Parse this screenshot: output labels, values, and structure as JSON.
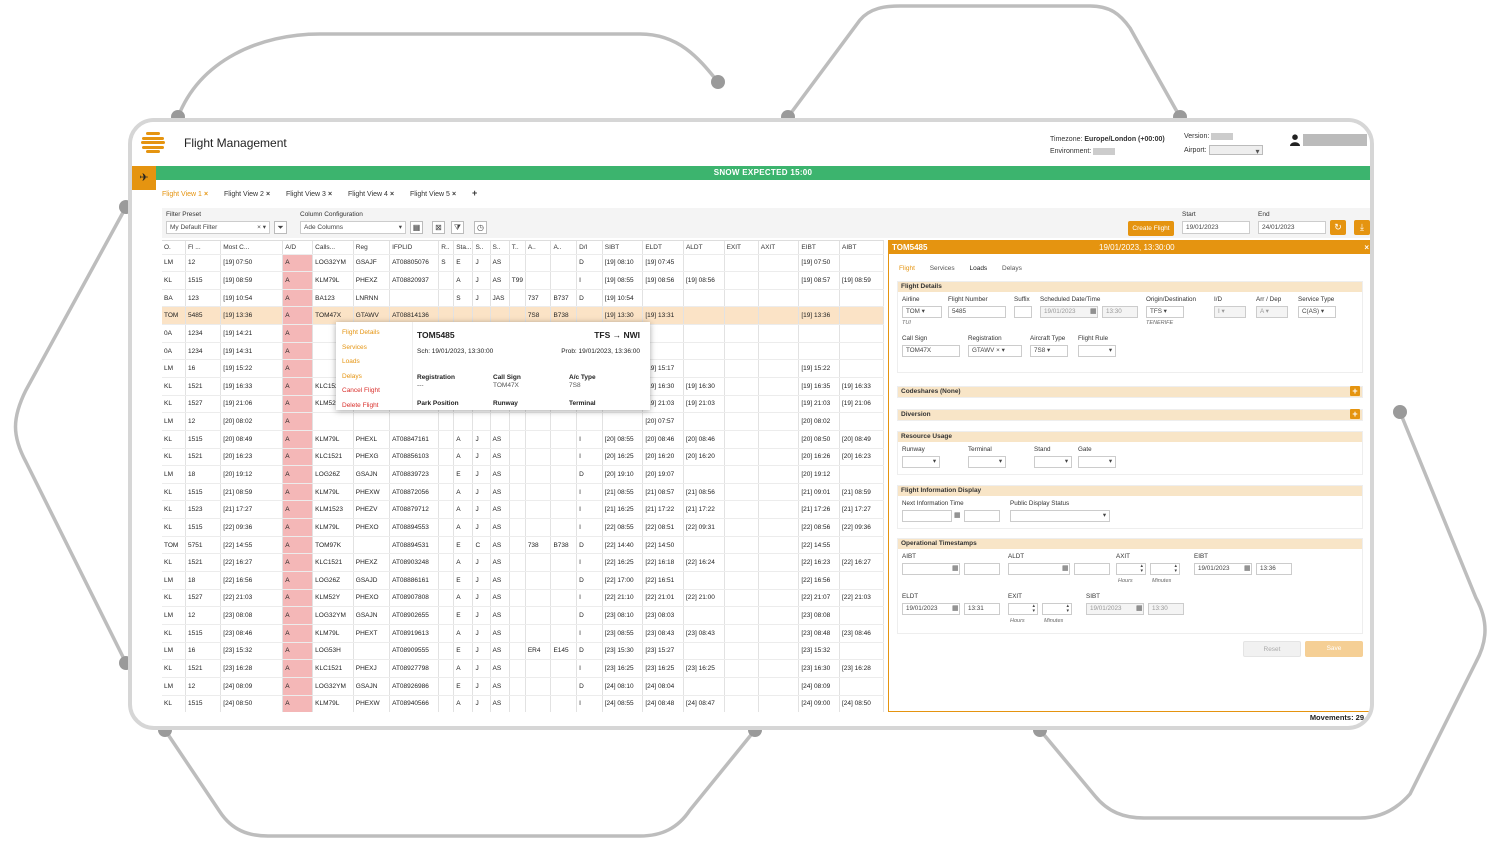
{
  "app": {
    "title": "Flight Management"
  },
  "header": {
    "timezone_label": "Timezone:",
    "timezone_value": "Europe/London (+00:00)",
    "environment_label": "Environment:",
    "version_label": "Version:",
    "airport_label": "Airport:"
  },
  "banner": {
    "text": "SNOW EXPECTED 15:00"
  },
  "tabs": [
    {
      "label": "Flight View 1"
    },
    {
      "label": "Flight View 2"
    },
    {
      "label": "Flight View 3"
    },
    {
      "label": "Flight View 4"
    },
    {
      "label": "Flight View 5"
    }
  ],
  "add_tab": "+",
  "toolbar": {
    "filter_label": "Filter Preset",
    "filter_value": "My Default Filter",
    "column_label": "Column Configuration",
    "column_value": "Ade Columns",
    "create_flight": "Create Flight",
    "start_label": "Start",
    "start_value": "19/01/2023",
    "end_label": "End",
    "end_value": "24/01/2023"
  },
  "grid": {
    "columns": [
      "O.",
      "Fl ...",
      "Most C...",
      "A/D",
      "Calls...",
      "Reg",
      "IFPLID",
      "R..",
      "Sta...",
      "S..",
      "S..",
      "T..",
      "A..",
      "A..",
      "D/I",
      "SIBT",
      "ELDT",
      "ALDT",
      "EXIT",
      "AXIT",
      "EIBT",
      "AIBT"
    ],
    "rows": [
      [
        "LM",
        "12",
        "[19] 07:50",
        "A",
        "LOG32YM",
        "GSAJF",
        "AT08805076",
        "S",
        "E",
        "J",
        "AS",
        "",
        "",
        "",
        "D",
        "[19] 08:10",
        "[19] 07:45",
        "",
        "",
        "",
        "[19] 07:50",
        ""
      ],
      [
        "KL",
        "1515",
        "[19] 08:59",
        "A",
        "KLM79L",
        "PHEXZ",
        "AT08820937",
        "",
        "A",
        "J",
        "AS",
        "T99",
        "",
        "",
        "I",
        "[19] 08:55",
        "[19] 08:56",
        "[19] 08:56",
        "",
        "",
        "[19] 08:57",
        "[19] 08:59"
      ],
      [
        "BA",
        "123",
        "[19] 10:54",
        "A",
        "BA123",
        "LNRNN",
        "",
        "",
        "S",
        "J",
        "JAS",
        "",
        "737",
        "B737",
        "D",
        "[19] 10:54",
        "",
        "",
        "",
        "",
        "",
        ""
      ],
      [
        "TOM",
        "5485",
        "[19] 13:36",
        "A",
        "TOM47X",
        "GTAWV",
        "AT08814136",
        "",
        "",
        "",
        "",
        "",
        "7S8",
        "B738",
        "",
        "[19] 13:30",
        "[19] 13:31",
        "",
        "",
        "",
        "[19] 13:36",
        ""
      ],
      [
        "0A",
        "1234",
        "[19] 14:21",
        "A",
        "",
        "",
        "",
        "",
        "",
        "",
        "",
        "",
        "",
        "",
        "",
        "",
        "",
        "",
        "",
        "",
        "",
        ""
      ],
      [
        "0A",
        "1234",
        "[19] 14:31",
        "A",
        "",
        "",
        "",
        "",
        "",
        "",
        "",
        "",
        "",
        "",
        "",
        "",
        "",
        "",
        "",
        "",
        "",
        ""
      ],
      [
        "LM",
        "16",
        "[19] 15:22",
        "A",
        "",
        "",
        "",
        "",
        "",
        "",
        "",
        "",
        "",
        "",
        "",
        "",
        "[19] 15:17",
        "",
        "",
        "",
        "[19] 15:22",
        ""
      ],
      [
        "KL",
        "1521",
        "[19] 16:33",
        "A",
        "KLC1521",
        "",
        "",
        "",
        "",
        "",
        "",
        "",
        "",
        "",
        "",
        "",
        "[19] 16:30",
        "[19] 16:30",
        "",
        "",
        "[19] 16:35",
        "[19] 16:33"
      ],
      [
        "KL",
        "1527",
        "[19] 21:06",
        "A",
        "KLM52Y",
        "",
        "",
        "",
        "",
        "",
        "",
        "",
        "",
        "",
        "",
        "",
        "[19] 21:03",
        "[19] 21:03",
        "",
        "",
        "[19] 21:03",
        "[19] 21:06"
      ],
      [
        "LM",
        "12",
        "[20] 08:02",
        "A",
        "",
        "",
        "",
        "",
        "",
        "",
        "",
        "",
        "",
        "",
        "",
        "",
        "[20] 07:57",
        "",
        "",
        "",
        "[20] 08:02",
        ""
      ],
      [
        "KL",
        "1515",
        "[20] 08:49",
        "A",
        "KLM79L",
        "PHEXL",
        "AT08847161",
        "",
        "A",
        "J",
        "AS",
        "",
        "",
        "",
        "I",
        "[20] 08:55",
        "[20] 08:46",
        "[20] 08:46",
        "",
        "",
        "[20] 08:50",
        "[20] 08:49"
      ],
      [
        "KL",
        "1521",
        "[20] 16:23",
        "A",
        "KLC1521",
        "PHEXG",
        "AT08856103",
        "",
        "A",
        "J",
        "AS",
        "",
        "",
        "",
        "I",
        "[20] 16:25",
        "[20] 16:20",
        "[20] 16:20",
        "",
        "",
        "[20] 16:26",
        "[20] 16:23"
      ],
      [
        "LM",
        "18",
        "[20] 19:12",
        "A",
        "LOG26Z",
        "GSAJN",
        "AT08839723",
        "",
        "E",
        "J",
        "AS",
        "",
        "",
        "",
        "D",
        "[20] 19:10",
        "[20] 19:07",
        "",
        "",
        "",
        "[20] 19:12",
        ""
      ],
      [
        "KL",
        "1515",
        "[21] 08:59",
        "A",
        "KLM79L",
        "PHEXW",
        "AT08872056",
        "",
        "A",
        "J",
        "AS",
        "",
        "",
        "",
        "I",
        "[21] 08:55",
        "[21] 08:57",
        "[21] 08:56",
        "",
        "",
        "[21] 09:01",
        "[21] 08:59"
      ],
      [
        "KL",
        "1523",
        "[21] 17:27",
        "A",
        "KLM1523",
        "PHEZV",
        "AT08879712",
        "",
        "A",
        "J",
        "AS",
        "",
        "",
        "",
        "I",
        "[21] 16:25",
        "[21] 17:22",
        "[21] 17:22",
        "",
        "",
        "[21] 17:26",
        "[21] 17:27"
      ],
      [
        "KL",
        "1515",
        "[22] 09:36",
        "A",
        "KLM79L",
        "PHEXO",
        "AT08894553",
        "",
        "A",
        "J",
        "AS",
        "",
        "",
        "",
        "I",
        "[22] 08:55",
        "[22] 08:51",
        "[22] 09:31",
        "",
        "",
        "[22] 08:56",
        "[22] 09:36"
      ],
      [
        "TOM",
        "5751",
        "[22] 14:55",
        "A",
        "TOM97K",
        "",
        "AT08894531",
        "",
        "E",
        "C",
        "AS",
        "",
        "738",
        "B738",
        "D",
        "[22] 14:40",
        "[22] 14:50",
        "",
        "",
        "",
        "[22] 14:55",
        ""
      ],
      [
        "KL",
        "1521",
        "[22] 16:27",
        "A",
        "KLC1521",
        "PHEXZ",
        "AT08903248",
        "",
        "A",
        "J",
        "AS",
        "",
        "",
        "",
        "I",
        "[22] 16:25",
        "[22] 16:18",
        "[22] 16:24",
        "",
        "",
        "[22] 16:23",
        "[22] 16:27"
      ],
      [
        "LM",
        "18",
        "[22] 16:56",
        "A",
        "LOG26Z",
        "GSAJD",
        "AT08886161",
        "",
        "E",
        "J",
        "AS",
        "",
        "",
        "",
        "D",
        "[22] 17:00",
        "[22] 16:51",
        "",
        "",
        "",
        "[22] 16:56",
        ""
      ],
      [
        "KL",
        "1527",
        "[22] 21:03",
        "A",
        "KLM52Y",
        "PHEXO",
        "AT08907808",
        "",
        "A",
        "J",
        "AS",
        "",
        "",
        "",
        "I",
        "[22] 21:10",
        "[22] 21:01",
        "[22] 21:00",
        "",
        "",
        "[22] 21:07",
        "[22] 21:03"
      ],
      [
        "LM",
        "12",
        "[23] 08:08",
        "A",
        "LOG32YM",
        "GSAJN",
        "AT08902655",
        "",
        "E",
        "J",
        "AS",
        "",
        "",
        "",
        "D",
        "[23] 08:10",
        "[23] 08:03",
        "",
        "",
        "",
        "[23] 08:08",
        ""
      ],
      [
        "KL",
        "1515",
        "[23] 08:46",
        "A",
        "KLM79L",
        "PHEXT",
        "AT08919613",
        "",
        "A",
        "J",
        "AS",
        "",
        "",
        "",
        "I",
        "[23] 08:55",
        "[23] 08:43",
        "[23] 08:43",
        "",
        "",
        "[23] 08:48",
        "[23] 08:46"
      ],
      [
        "LM",
        "16",
        "[23] 15:32",
        "A",
        "LOG53H",
        "",
        "AT08909555",
        "",
        "E",
        "J",
        "AS",
        "",
        "ER4",
        "E145",
        "D",
        "[23] 15:30",
        "[23] 15:27",
        "",
        "",
        "",
        "[23] 15:32",
        ""
      ],
      [
        "KL",
        "1521",
        "[23] 16:28",
        "A",
        "KLC1521",
        "PHEXJ",
        "AT08927798",
        "",
        "A",
        "J",
        "AS",
        "",
        "",
        "",
        "I",
        "[23] 16:25",
        "[23] 16:25",
        "[23] 16:25",
        "",
        "",
        "[23] 16:30",
        "[23] 16:28"
      ],
      [
        "LM",
        "12",
        "[24] 08:09",
        "A",
        "LOG32YM",
        "GSAJN",
        "AT08926986",
        "",
        "E",
        "J",
        "AS",
        "",
        "",
        "",
        "D",
        "[24] 08:10",
        "[24] 08:04",
        "",
        "",
        "",
        "[24] 08:09",
        ""
      ],
      [
        "KL",
        "1515",
        "[24] 08:50",
        "A",
        "KLM79L",
        "PHEXW",
        "AT08940566",
        "",
        "A",
        "J",
        "AS",
        "",
        "",
        "",
        "I",
        "[24] 08:55",
        "[24] 08:48",
        "[24] 08:47",
        "",
        "",
        "[24] 09:00",
        "[24] 08:50"
      ]
    ]
  },
  "popup": {
    "menu": [
      "Flight Details",
      "Services",
      "Loads",
      "Delays",
      "Cancel Flight",
      "Delete Flight"
    ],
    "flight": "TOM5485",
    "route": "TFS → NWI",
    "sch": "Sch: 19/01/2023, 13:30:00",
    "prob": "Prob: 19/01/2023, 13:36:00",
    "registration_label": "Registration",
    "registration_value": "---",
    "callsign_label": "Call Sign",
    "callsign_value": "TOM47X",
    "actype_label": "A/c Type",
    "actype_value": "7S8",
    "park_label": "Park Position",
    "park_value": "---",
    "runway_label": "Runway",
    "runway_value": "---",
    "terminal_label": "Terminal",
    "terminal_value": "---"
  },
  "panel": {
    "flight": "TOM5485",
    "datetime": "19/01/2023, 13:30:00",
    "close": "×",
    "tabs": [
      "Flight",
      "Services",
      "Loads",
      "Delays"
    ],
    "flight_details": {
      "title": "Flight Details",
      "airline_label": "Airline",
      "airline_value": "TOM",
      "airline_sub": "TUI",
      "flight_number_label": "Flight Number",
      "flight_number_value": "5485",
      "suffix_label": "Suffix",
      "sched_label": "Scheduled Date/Time",
      "sched_date": "19/01/2023",
      "sched_time": "13:30",
      "origin_label": "Origin/Destination",
      "origin_value": "TFS",
      "origin_sub": "TENERIFE",
      "id_label": "I/D",
      "id_value": "I",
      "arrdep_label": "Arr / Dep",
      "arrdep_value": "A",
      "service_label": "Service Type",
      "service_value": "C(AS)",
      "callsign_label": "Call Sign",
      "callsign_value": "TOM47X",
      "registration_label": "Registration",
      "registration_value": "GTAWV",
      "aircraft_label": "Aircraft Type",
      "aircraft_value": "7S8",
      "rule_label": "Flight Rule"
    },
    "codeshares": "Codeshares (None)",
    "diversion": "Diversion",
    "resource": {
      "title": "Resource Usage",
      "runway": "Runway",
      "terminal": "Terminal",
      "stand": "Stand",
      "gate": "Gate"
    },
    "fid": {
      "title": "Flight Information Display",
      "next_label": "Next Information Time",
      "status_label": "Public Display Status"
    },
    "ops": {
      "title": "Operational Timestamps",
      "aibt": "AIBT",
      "aldt": "ALDT",
      "axit": "AXIT",
      "hours": "Hours",
      "minutes": "Minutes",
      "eibt": "EIBT",
      "eibt_date": "19/01/2023",
      "eibt_time": "13:36",
      "eldt": "ELDT",
      "eldt_date": "19/01/2023",
      "eldt_time": "13:31",
      "exit": "EXIT",
      "sibt": "SIBT",
      "sibt_date": "19/01/2023",
      "sibt_time": "13:30"
    },
    "reset": "Reset",
    "save": "Save"
  },
  "movements": "Movements: 29",
  "colors": {
    "accent": "#e59410",
    "banner": "#3cb46e",
    "arrival": "#f4b7b7",
    "selected": "#fbe3c6"
  }
}
